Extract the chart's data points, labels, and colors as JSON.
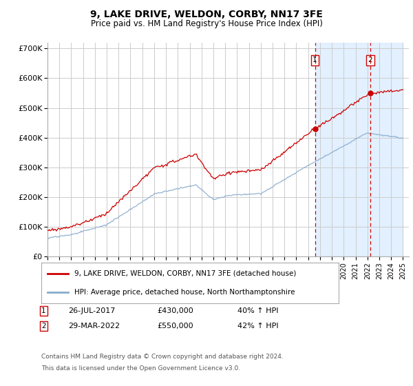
{
  "title": "9, LAKE DRIVE, WELDON, CORBY, NN17 3FE",
  "subtitle": "Price paid vs. HM Land Registry's House Price Index (HPI)",
  "ylim": [
    0,
    720000
  ],
  "yticks": [
    0,
    100000,
    200000,
    300000,
    400000,
    500000,
    600000,
    700000
  ],
  "ytick_labels": [
    "£0",
    "£100K",
    "£200K",
    "£300K",
    "£400K",
    "£500K",
    "£600K",
    "£700K"
  ],
  "year_start": 1995,
  "year_end": 2025,
  "transaction1_date": 2017.57,
  "transaction1_price": 430000,
  "transaction1_label": "26-JUL-2017",
  "transaction1_amount": "£430,000",
  "transaction1_pct": "40% ↑ HPI",
  "transaction2_date": 2022.24,
  "transaction2_price": 550000,
  "transaction2_label": "29-MAR-2022",
  "transaction2_amount": "£550,000",
  "transaction2_pct": "42% ↑ HPI",
  "legend_line1": "9, LAKE DRIVE, WELDON, CORBY, NN17 3FE (detached house)",
  "legend_line2": "HPI: Average price, detached house, North Northamptonshire",
  "footer1": "Contains HM Land Registry data © Crown copyright and database right 2024.",
  "footer2": "This data is licensed under the Open Government Licence v3.0.",
  "red_color": "#cc0000",
  "blue_color": "#88aacc",
  "bg_color": "#ffffff",
  "grid_color": "#cccccc",
  "shade_color": "#ddeeff"
}
